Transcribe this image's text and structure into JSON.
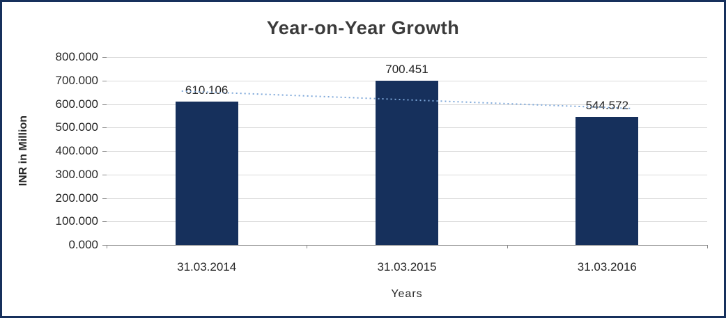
{
  "chart_data": {
    "type": "bar",
    "title": "Year-on-Year Growth",
    "xlabel": "Years",
    "ylabel": "INR in Million",
    "categories": [
      "31.03.2014",
      "31.03.2015",
      "31.03.2016"
    ],
    "values": [
      610.106,
      700.451,
      544.572
    ],
    "value_labels": [
      "610.106",
      "700.451",
      "544.572"
    ],
    "ylim": [
      0,
      800
    ],
    "yticks": [
      "800.000",
      "700.000",
      "600.000",
      "500.000",
      "400.000",
      "300.000",
      "200.000",
      "100.000",
      "0.000"
    ],
    "grid": true,
    "legend": "none",
    "trendline": {
      "type": "linear",
      "style": "dotted",
      "endpoint_values": [
        655.0,
        581.0
      ],
      "color": "#7da7d9"
    },
    "colors": {
      "bar": "#16305C",
      "frame_border": "#16305C",
      "gridline": "#D9D9D9",
      "axis_line": "#898989",
      "title_text": "#3b3b3b",
      "trend": "#7da7d9"
    }
  }
}
